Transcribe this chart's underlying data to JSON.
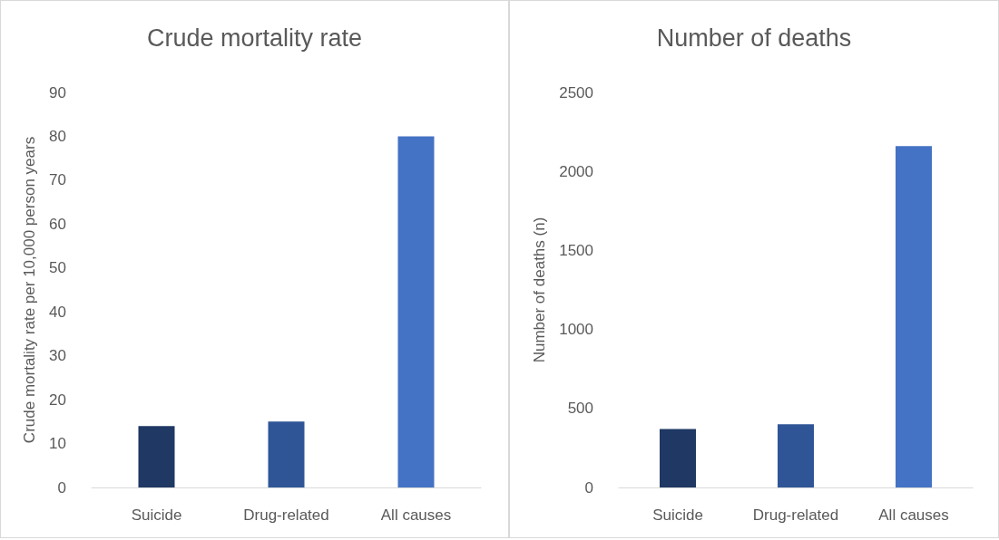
{
  "chart_data": [
    {
      "type": "bar",
      "title": "Crude mortality rate",
      "ylabel": "Crude mortality rate per 10,000 person years",
      "categories": [
        "Suicide",
        "Drug-related",
        "All causes"
      ],
      "values": [
        14,
        15,
        80
      ],
      "colors": [
        "#1f3864",
        "#2f5597",
        "#4472c4"
      ],
      "ylim": [
        0,
        90
      ],
      "yticks": [
        0,
        10,
        20,
        30,
        40,
        50,
        60,
        70,
        80,
        90
      ]
    },
    {
      "type": "bar",
      "title": "Number of deaths",
      "ylabel": "Number of deaths (n)",
      "categories": [
        "Suicide",
        "Drug-related",
        "All causes"
      ],
      "values": [
        370,
        400,
        2160
      ],
      "colors": [
        "#1f3864",
        "#2f5597",
        "#4472c4"
      ],
      "ylim": [
        0,
        2500
      ],
      "yticks": [
        0,
        500,
        1000,
        1500,
        2000,
        2500
      ]
    }
  ]
}
